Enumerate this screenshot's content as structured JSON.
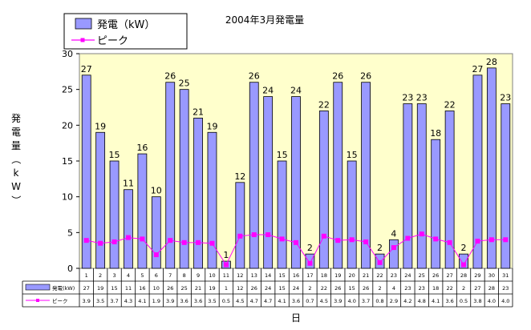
{
  "chart_data": {
    "type": "bar",
    "title": "2004年3月発電量",
    "xlabel": "日",
    "ylabel": "発電量（kW）",
    "ylim": [
      0,
      30
    ],
    "yticks": [
      0,
      5,
      10,
      15,
      20,
      25,
      30
    ],
    "categories": [
      "1",
      "2",
      "3",
      "4",
      "5",
      "6",
      "7",
      "8",
      "9",
      "10",
      "11",
      "12",
      "13",
      "14",
      "15",
      "16",
      "17",
      "18",
      "19",
      "20",
      "21",
      "22",
      "23",
      "24",
      "25",
      "26",
      "27",
      "28",
      "29",
      "30",
      "31"
    ],
    "series": [
      {
        "name": "発電（kW）",
        "table_label": "発電(kW)",
        "kind": "bar",
        "color": "#9999ff",
        "values": [
          27,
          19,
          15,
          11,
          16,
          10,
          26,
          25,
          21,
          19,
          1,
          12,
          26,
          24,
          15,
          24,
          2,
          22,
          26,
          15,
          26,
          2,
          4,
          23,
          23,
          18,
          22,
          2,
          27,
          28,
          23
        ],
        "labels": [
          "27",
          "19",
          "15",
          "11",
          "16",
          "10",
          "26",
          "25",
          "21",
          "19",
          "1",
          "12",
          "26",
          "24",
          "15",
          "24",
          "2",
          "22",
          "26",
          "15",
          "26",
          "2",
          "4",
          "23",
          "23",
          "18",
          "22",
          "2",
          "27",
          "28",
          "23"
        ]
      },
      {
        "name": "ピーク",
        "table_label": "ピーク",
        "kind": "line",
        "color": "#ff00ff",
        "values": [
          3.9,
          3.5,
          3.7,
          4.3,
          4.1,
          1.9,
          3.9,
          3.6,
          3.6,
          3.5,
          0.5,
          4.5,
          4.7,
          4.7,
          4.1,
          3.6,
          0.7,
          4.5,
          3.9,
          4.0,
          3.7,
          0.8,
          2.9,
          4.2,
          4.8,
          4.1,
          3.6,
          0.5,
          3.8,
          4.0,
          4.0
        ],
        "labels": [
          "3.9",
          "3.5",
          "3.7",
          "4.3",
          "4.1",
          "1.9",
          "3.9",
          "3.6",
          "3.6",
          "3.5",
          "0.5",
          "4.5",
          "4.7",
          "4.7",
          "4.1",
          "3.6",
          "0.7",
          "4.5",
          "3.9",
          "4.0",
          "3.7",
          "0.8",
          "2.9",
          "4.2",
          "4.8",
          "4.1",
          "3.6",
          "0.5",
          "3.8",
          "4.0",
          "4.0"
        ]
      }
    ],
    "data_labels_visible": [
      true,
      true,
      true,
      true,
      true,
      true,
      true,
      true,
      true,
      true,
      true,
      true,
      true,
      true,
      true,
      true,
      true,
      true,
      true,
      true,
      true,
      true,
      true,
      true,
      true,
      true,
      true,
      true,
      true,
      true,
      true
    ],
    "legend": {
      "placement": "top-left"
    },
    "grid": false,
    "colors": {
      "plot_bg": "#ffffcc",
      "bar_fill": "#9999ff",
      "line": "#ff00ff"
    }
  }
}
